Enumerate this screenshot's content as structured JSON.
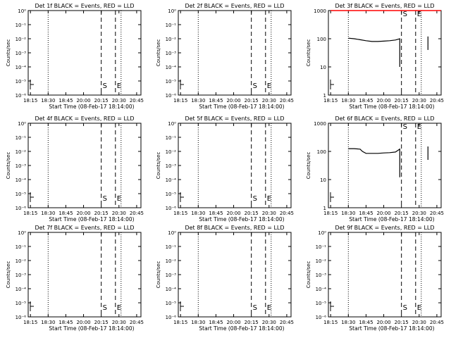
{
  "figure": {
    "xlabel": "Start Time (08-Feb-17 18:14:00)",
    "ylabel": "Counts/sec",
    "x_tick_labels": [
      "18:15",
      "18:30",
      "18:45",
      "20:00",
      "20:15",
      "20:30",
      "20:45"
    ],
    "line_colors": {
      "events": "#000000",
      "lld": "#ff0000"
    }
  },
  "chart_data": [
    {
      "type": "line",
      "title": "Det 1f BLACK = Events, RED = LLD",
      "y_scale": "log",
      "y_tick_labels": [
        "10⁰",
        "10⁻¹",
        "10⁻²",
        "10⁻³",
        "10⁻⁴",
        "10⁻⁵",
        "10⁻⁶"
      ],
      "y_tick_values": [
        1,
        0.1,
        0.01,
        0.001,
        0.0001,
        1e-05,
        1e-06
      ],
      "ylim": [
        1,
        1e-06
      ],
      "markers": [
        {
          "label": "S",
          "x": "20:15",
          "style": "dashed"
        },
        {
          "label": "E",
          "x": "20:30",
          "style": "dashed"
        }
      ],
      "dotted_lines": [
        "18:30",
        "20:30"
      ],
      "series": []
    },
    {
      "type": "line",
      "title": "Det 2f BLACK = Events, RED = LLD",
      "y_scale": "log",
      "y_tick_labels": [
        "10⁰",
        "10⁻¹",
        "10⁻²",
        "10⁻³",
        "10⁻⁴",
        "10⁻⁵",
        "10⁻⁶"
      ],
      "y_tick_values": [
        1,
        0.1,
        0.01,
        0.001,
        0.0001,
        1e-05,
        1e-06
      ],
      "ylim": [
        1,
        1e-06
      ],
      "markers": [
        {
          "label": "S",
          "x": "20:15",
          "style": "dashed"
        },
        {
          "label": "E",
          "x": "20:30",
          "style": "dashed"
        }
      ],
      "dotted_lines": [
        "18:30",
        "20:30"
      ],
      "series": []
    },
    {
      "type": "line",
      "title": "Det 3f BLACK = Events, RED = LLD",
      "y_scale": "log",
      "y_tick_labels": [
        "1",
        "10",
        "100",
        "1000"
      ],
      "y_tick_values": [
        1,
        10,
        100,
        1000
      ],
      "ylim": [
        1,
        1000
      ],
      "markers": [
        {
          "label": "S",
          "x": "20:15",
          "style": "dashed"
        },
        {
          "label": "E",
          "x": "20:30",
          "style": "dashed"
        }
      ],
      "dotted_lines": [
        "18:30",
        "20:30"
      ],
      "series": [
        {
          "role": "events",
          "x": [
            "18:30",
            "18:35",
            "18:40",
            "18:45",
            "18:50",
            "18:55",
            "20:00",
            "20:05",
            "20:10",
            "20:13",
            "20:13"
          ],
          "y": [
            105,
            100,
            92,
            85,
            80,
            80,
            82,
            85,
            90,
            100,
            10
          ]
        },
        {
          "role": "events",
          "x": [
            "20:36",
            "20:36"
          ],
          "y": [
            40,
            120
          ]
        },
        {
          "role": "lld",
          "x": [
            "18:15",
            "20:55"
          ],
          "y": [
            1000,
            1000
          ]
        }
      ]
    },
    {
      "type": "line",
      "title": "Det 4f BLACK = Events, RED = LLD",
      "y_scale": "log",
      "y_tick_labels": [
        "10⁰",
        "10⁻¹",
        "10⁻²",
        "10⁻³",
        "10⁻⁴",
        "10⁻⁵",
        "10⁻⁶"
      ],
      "y_tick_values": [
        1,
        0.1,
        0.01,
        0.001,
        0.0001,
        1e-05,
        1e-06
      ],
      "ylim": [
        1,
        1e-06
      ],
      "markers": [
        {
          "label": "S",
          "x": "20:15",
          "style": "dashed"
        },
        {
          "label": "E",
          "x": "20:30",
          "style": "dashed"
        }
      ],
      "dotted_lines": [
        "18:30",
        "20:30"
      ],
      "series": []
    },
    {
      "type": "line",
      "title": "Det 5f BLACK = Events, RED = LLD",
      "y_scale": "log",
      "y_tick_labels": [
        "10⁰",
        "10⁻¹",
        "10⁻²",
        "10⁻³",
        "10⁻⁴",
        "10⁻⁵",
        "10⁻⁶"
      ],
      "y_tick_values": [
        1,
        0.1,
        0.01,
        0.001,
        0.0001,
        1e-05,
        1e-06
      ],
      "ylim": [
        1,
        1e-06
      ],
      "markers": [
        {
          "label": "S",
          "x": "20:15",
          "style": "dashed"
        },
        {
          "label": "E",
          "x": "20:30",
          "style": "dashed"
        }
      ],
      "dotted_lines": [
        "18:30",
        "20:30"
      ],
      "series": []
    },
    {
      "type": "line",
      "title": "Det 6f BLACK = Events, RED = LLD",
      "y_scale": "log",
      "y_tick_labels": [
        "1",
        "10",
        "100",
        "1000"
      ],
      "y_tick_values": [
        1,
        10,
        100,
        1000
      ],
      "ylim": [
        1,
        1000
      ],
      "markers": [
        {
          "label": "S",
          "x": "20:15",
          "style": "dashed"
        },
        {
          "label": "E",
          "x": "20:30",
          "style": "dashed"
        }
      ],
      "dotted_lines": [
        "18:30",
        "20:30"
      ],
      "series": [
        {
          "role": "events",
          "x": [
            "18:30",
            "18:35",
            "18:40",
            "18:42",
            "18:45",
            "18:50",
            "18:55",
            "20:00",
            "20:05",
            "20:10",
            "20:13",
            "20:13"
          ],
          "y": [
            125,
            125,
            120,
            100,
            85,
            85,
            85,
            88,
            90,
            95,
            120,
            12
          ]
        },
        {
          "role": "events",
          "x": [
            "20:36",
            "20:36"
          ],
          "y": [
            50,
            150
          ]
        }
      ]
    },
    {
      "type": "line",
      "title": "Det 7f BLACK = Events, RED = LLD",
      "y_scale": "log",
      "y_tick_labels": [
        "10⁰",
        "10⁻¹",
        "10⁻²",
        "10⁻³",
        "10⁻⁴",
        "10⁻⁵",
        "10⁻⁶"
      ],
      "y_tick_values": [
        1,
        0.1,
        0.01,
        0.001,
        0.0001,
        1e-05,
        1e-06
      ],
      "ylim": [
        1,
        1e-06
      ],
      "markers": [
        {
          "label": "S",
          "x": "20:15",
          "style": "dashed"
        },
        {
          "label": "E",
          "x": "20:30",
          "style": "dashed"
        }
      ],
      "dotted_lines": [
        "18:30",
        "20:30"
      ],
      "series": []
    },
    {
      "type": "line",
      "title": "Det 8f BLACK = Events, RED = LLD",
      "y_scale": "log",
      "y_tick_labels": [
        "10⁰",
        "10⁻¹",
        "10⁻²",
        "10⁻³",
        "10⁻⁴",
        "10⁻⁵",
        "10⁻⁶"
      ],
      "y_tick_values": [
        1,
        0.1,
        0.01,
        0.001,
        0.0001,
        1e-05,
        1e-06
      ],
      "ylim": [
        1,
        1e-06
      ],
      "markers": [
        {
          "label": "S",
          "x": "20:15",
          "style": "dashed"
        },
        {
          "label": "E",
          "x": "20:30",
          "style": "dashed"
        }
      ],
      "dotted_lines": [
        "18:30",
        "20:30"
      ],
      "series": []
    },
    {
      "type": "line",
      "title": "Det 9f BLACK = Events, RED = LLD",
      "y_scale": "log",
      "y_tick_labels": [
        "10⁰",
        "10⁻¹",
        "10⁻²",
        "10⁻³",
        "10⁻⁴",
        "10⁻⁵",
        "10⁻⁶"
      ],
      "y_tick_values": [
        1,
        0.1,
        0.01,
        0.001,
        0.0001,
        1e-05,
        1e-06
      ],
      "ylim": [
        1,
        1e-06
      ],
      "markers": [
        {
          "label": "S",
          "x": "20:15",
          "style": "dashed"
        },
        {
          "label": "E",
          "x": "20:30",
          "style": "dashed"
        }
      ],
      "dotted_lines": [
        "18:30",
        "20:30"
      ],
      "series": []
    }
  ]
}
